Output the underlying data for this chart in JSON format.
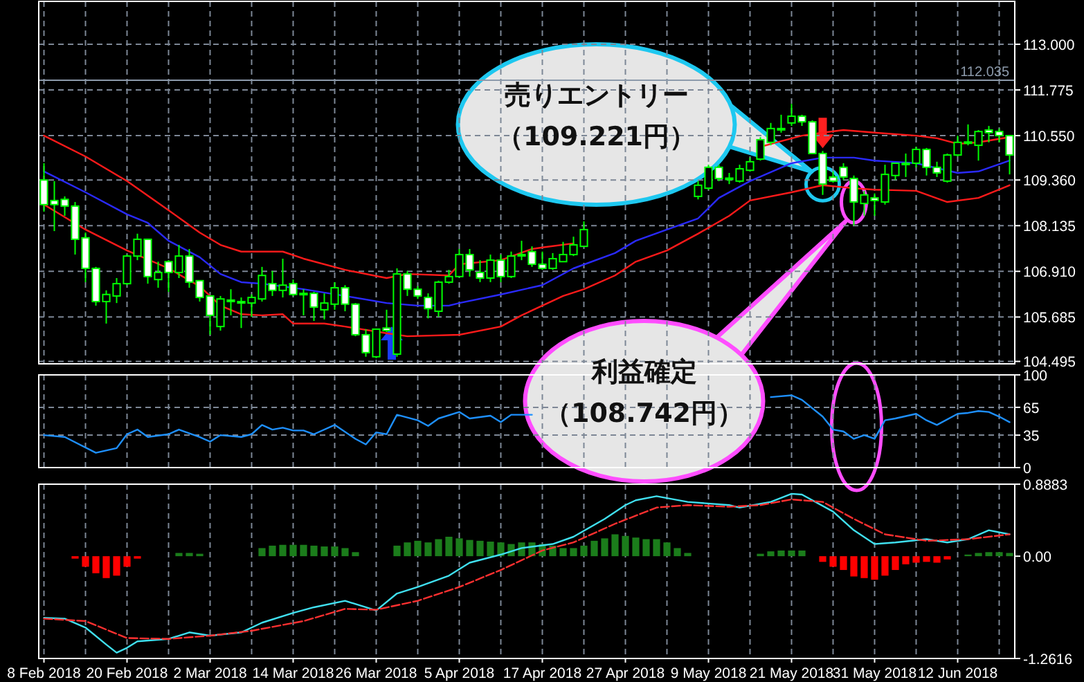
{
  "chart_data": [
    {
      "type": "candlestick",
      "color": "#00ff00",
      "tick_labels": "y",
      "grid": true,
      "categories": [
        null,
        null,
        null,
        null,
        null,
        null,
        null,
        null,
        null,
        null,
        null,
        null,
        null,
        null,
        null,
        null,
        null,
        null,
        null,
        null,
        null,
        null,
        null,
        null,
        null,
        null,
        null,
        null,
        null,
        null,
        null,
        null,
        null,
        null,
        null,
        null,
        null,
        null,
        null,
        null,
        null,
        null,
        null,
        null,
        null,
        null,
        null,
        null,
        null,
        null,
        null,
        null,
        null,
        null,
        null,
        null,
        null,
        null,
        null,
        null,
        null,
        null,
        null,
        null,
        null,
        null,
        null,
        null,
        null,
        null,
        null,
        null,
        null,
        null,
        null,
        null,
        null,
        null,
        null,
        null,
        null,
        null,
        null,
        null,
        null,
        null,
        null,
        null,
        null,
        null,
        null,
        null,
        null,
        null
      ],
      "ohlc": [
        [
          109.36,
          109.81,
          108.51,
          108.7
        ],
        [
          108.81,
          109.33,
          107.99,
          108.7
        ],
        [
          108.84,
          108.92,
          108.4,
          108.66
        ],
        [
          108.66,
          108.77,
          107.36,
          107.77
        ],
        [
          107.81,
          107.95,
          106.62,
          106.99
        ],
        [
          106.99,
          107.03,
          105.99,
          106.1
        ],
        [
          106.1,
          106.4,
          105.51,
          106.29
        ],
        [
          106.25,
          106.73,
          106.06,
          106.58
        ],
        [
          106.58,
          107.36,
          106.54,
          107.32
        ],
        [
          107.32,
          107.92,
          107.21,
          107.77
        ],
        [
          107.77,
          107.77,
          106.58,
          106.77
        ],
        [
          106.69,
          107.17,
          106.47,
          106.88
        ],
        [
          107.17,
          107.21,
          106.36,
          106.88
        ],
        [
          106.88,
          107.62,
          106.73,
          107.32
        ],
        [
          107.32,
          107.51,
          106.47,
          106.62
        ],
        [
          106.66,
          106.66,
          106.1,
          106.21
        ],
        [
          106.25,
          106.25,
          105.21,
          105.73
        ],
        [
          105.43,
          106.25,
          105.32,
          106.17
        ],
        [
          106.14,
          106.43,
          105.73,
          106.1
        ],
        [
          106.1,
          106.21,
          105.39,
          106.06
        ],
        [
          106.06,
          106.29,
          105.69,
          106.21
        ],
        [
          106.17,
          107.03,
          106.1,
          106.8
        ],
        [
          106.58,
          106.92,
          106.25,
          106.4
        ],
        [
          106.4,
          107.25,
          106.21,
          106.54
        ],
        [
          106.58,
          106.69,
          106.25,
          106.29
        ],
        [
          106.32,
          106.43,
          105.73,
          106.31
        ],
        [
          106.32,
          106.36,
          105.58,
          105.95
        ],
        [
          105.88,
          106.32,
          105.62,
          106.06
        ],
        [
          106.03,
          106.62,
          105.88,
          106.47
        ],
        [
          106.47,
          106.54,
          105.84,
          106.03
        ],
        [
          106.03,
          106.06,
          105.17,
          105.21
        ],
        [
          105.21,
          105.36,
          104.62,
          104.73
        ],
        [
          104.62,
          105.36,
          104.58,
          105.36
        ],
        [
          105.39,
          105.88,
          105.28,
          105.32
        ],
        [
          104.69,
          106.99,
          104.62,
          106.84
        ],
        [
          106.84,
          106.92,
          106.25,
          106.43
        ],
        [
          106.43,
          106.51,
          106.17,
          106.25
        ],
        [
          106.21,
          106.32,
          105.65,
          105.91
        ],
        [
          105.84,
          106.66,
          105.69,
          106.62
        ],
        [
          106.62,
          106.95,
          106.58,
          106.77
        ],
        [
          106.77,
          107.51,
          106.77,
          107.36
        ],
        [
          107.36,
          107.51,
          106.77,
          106.95
        ],
        [
          106.88,
          107.21,
          106.62,
          106.73
        ],
        [
          106.73,
          107.36,
          106.62,
          107.21
        ],
        [
          107.21,
          107.36,
          106.62,
          106.77
        ],
        [
          106.77,
          107.44,
          106.73,
          107.32
        ],
        [
          107.36,
          107.73,
          107.21,
          107.36
        ],
        [
          107.44,
          107.58,
          107.03,
          107.1
        ],
        [
          107.1,
          107.44,
          106.95,
          106.99
        ],
        [
          106.99,
          107.4,
          106.95,
          107.25
        ],
        [
          107.17,
          107.7,
          107.17,
          107.36
        ],
        [
          107.36,
          107.84,
          107.32,
          107.62
        ],
        [
          107.58,
          108.25,
          107.58,
          108.03
        ],
        null,
        null,
        null,
        null,
        null,
        null,
        null,
        null,
        null,
        null,
        [
          108.92,
          109.33,
          108.84,
          109.22
        ],
        [
          109.14,
          109.77,
          109.1,
          109.7
        ],
        [
          109.7,
          109.77,
          109.33,
          109.4
        ],
        [
          109.4,
          109.55,
          109.25,
          109.41
        ],
        [
          109.33,
          109.77,
          109.29,
          109.66
        ],
        [
          109.62,
          109.96,
          109.59,
          109.85
        ],
        [
          109.92,
          110.51,
          109.88,
          110.44
        ],
        [
          110.37,
          110.89,
          110.29,
          110.74
        ],
        [
          110.74,
          111.11,
          110.63,
          110.73
        ],
        [
          110.89,
          111.4,
          110.81,
          111.07
        ],
        [
          111.07,
          111.11,
          110.81,
          110.92
        ],
        [
          110.92,
          110.96,
          110.07,
          110.07
        ],
        [
          110.07,
          110.14,
          108.96,
          109.25
        ],
        [
          109.44,
          109.59,
          109.29,
          109.33
        ],
        [
          109.7,
          109.81,
          109.36,
          109.44
        ],
        [
          109.4,
          109.48,
          108.14,
          108.77
        ],
        [
          108.73,
          109.07,
          108.4,
          108.96
        ],
        [
          108.88,
          109.0,
          108.4,
          108.81
        ],
        [
          108.77,
          109.77,
          108.7,
          109.51
        ],
        [
          109.48,
          109.81,
          109.36,
          109.81
        ],
        [
          109.81,
          110.07,
          109.44,
          109.8
        ],
        [
          109.81,
          110.25,
          109.7,
          110.18
        ],
        [
          110.18,
          110.22,
          109.48,
          109.7
        ],
        [
          109.7,
          109.85,
          109.44,
          109.55
        ],
        [
          109.33,
          110.07,
          109.29,
          110.03
        ],
        [
          110.03,
          110.55,
          109.99,
          110.37
        ],
        [
          110.37,
          110.85,
          110.29,
          110.38
        ],
        [
          110.29,
          110.7,
          109.88,
          110.66
        ],
        [
          110.7,
          110.81,
          110.37,
          110.63
        ],
        [
          110.66,
          110.74,
          110.37,
          110.55
        ],
        [
          110.55,
          110.55,
          109.51,
          110.03
        ]
      ],
      "series": [
        {
          "type": "line",
          "color": "#ff1a1a",
          "values": [
            110.55,
            null,
            null,
            null,
            109.99,
            null,
            null,
            null,
            109.33,
            null,
            null,
            null,
            108.55,
            null,
            null,
            107.95,
            null,
            107.62,
            null,
            107.44,
            null,
            null,
            null,
            107.44,
            null,
            107.25,
            null,
            null,
            null,
            106.95,
            null,
            null,
            null,
            106.73,
            null,
            106.84,
            null,
            null,
            null,
            106.8,
            107.1,
            null,
            null,
            null,
            107.21,
            null,
            null,
            107.51,
            107.55,
            null,
            null,
            107.66,
            null,
            null,
            null,
            null,
            null,
            null,
            null,
            null,
            null,
            null,
            null,
            null,
            null,
            null,
            null,
            null,
            null,
            110.25,
            null,
            110.4,
            null,
            110.55,
            null,
            110.63,
            null,
            110.7,
            null,
            null,
            110.63,
            null,
            null,
            null,
            110.55,
            null,
            110.48,
            null,
            110.33,
            null,
            110.37,
            null,
            null,
            110.51
          ]
        },
        {
          "type": "line",
          "color": "#2a2aff",
          "values": [
            109.59,
            null,
            null,
            null,
            109.03,
            null,
            null,
            null,
            108.44,
            null,
            108.21,
            null,
            107.73,
            null,
            null,
            107.29,
            null,
            106.84,
            null,
            106.62,
            null,
            106.58,
            null,
            null,
            null,
            106.43,
            null,
            null,
            null,
            106.25,
            null,
            null,
            null,
            106.06,
            null,
            null,
            105.99,
            null,
            null,
            105.99,
            106.06,
            null,
            null,
            null,
            106.29,
            null,
            null,
            null,
            106.54,
            null,
            null,
            106.99,
            null,
            null,
            null,
            107.4,
            null,
            107.73,
            null,
            null,
            108.03,
            null,
            null,
            108.33,
            null,
            108.88,
            null,
            null,
            109.33,
            null,
            null,
            null,
            109.81,
            null,
            null,
            109.96,
            null,
            null,
            109.96,
            null,
            109.88,
            null,
            null,
            null,
            109.81,
            null,
            null,
            null,
            109.55,
            null,
            109.59,
            null,
            null,
            109.88
          ]
        },
        {
          "type": "line",
          "color": "#ff1a1a",
          "values": [
            108.7,
            null,
            null,
            null,
            108.03,
            null,
            null,
            null,
            107.47,
            null,
            null,
            null,
            106.99,
            null,
            null,
            106.51,
            null,
            105.99,
            null,
            105.76,
            null,
            105.73,
            null,
            105.76,
            105.51,
            null,
            null,
            105.51,
            null,
            105.43,
            null,
            null,
            null,
            105.25,
            null,
            105.17,
            null,
            null,
            null,
            null,
            105.21,
            null,
            null,
            null,
            105.43,
            null,
            105.73,
            null,
            null,
            null,
            106.25,
            null,
            106.43,
            null,
            null,
            106.8,
            null,
            107.17,
            null,
            null,
            107.47,
            null,
            null,
            107.92,
            null,
            null,
            108.4,
            null,
            108.81,
            null,
            null,
            null,
            109.03,
            null,
            null,
            109.22,
            null,
            null,
            109.14,
            null,
            109.1,
            null,
            null,
            null,
            109.07,
            null,
            null,
            108.77,
            null,
            null,
            108.88,
            null,
            null,
            109.22
          ]
        }
      ],
      "ylim": [
        104.43,
        114.15
      ],
      "yticks": [
        {
          "value": 113,
          "label": "113.000"
        },
        {
          "value": 111.775,
          "label": "111.775"
        },
        {
          "value": 110.55,
          "label": "110.550"
        },
        {
          "value": 109.36,
          "label": "109.360"
        },
        {
          "value": 108.135,
          "label": "108.135"
        },
        {
          "value": 106.91,
          "label": "106.910"
        },
        {
          "value": 105.685,
          "label": "105.685"
        },
        {
          "value": 104.495,
          "label": "104.495"
        }
      ],
      "ref_lines": [
        {
          "axis": "y",
          "value": 112.035,
          "label": "112.035",
          "color": "#8c9aab"
        }
      ],
      "annotations": [
        "売りエントリー",
        "（109.221円）",
        "利益確定",
        "（108.742円）"
      ]
    },
    {
      "type": "line",
      "tick_labels": "y",
      "grid": true,
      "categories": [
        null,
        null,
        null,
        null,
        null,
        null,
        null,
        null,
        null,
        null,
        null,
        null,
        null,
        null,
        null,
        null,
        null,
        null,
        null,
        null,
        null,
        null,
        null,
        null,
        null,
        null,
        null,
        null,
        null,
        null,
        null,
        null,
        null,
        null,
        null,
        null,
        null,
        null,
        null,
        null,
        null,
        null,
        null,
        null,
        null,
        null,
        null,
        null,
        null,
        null,
        null,
        null,
        null,
        null,
        null,
        null,
        null,
        null,
        null,
        null,
        null,
        null,
        null,
        null,
        null,
        null,
        null,
        null,
        null,
        null,
        null,
        null,
        null,
        null,
        null,
        null,
        null,
        null,
        null,
        null,
        null,
        null,
        null,
        null,
        null,
        null,
        null,
        null,
        null,
        null,
        null,
        null,
        null,
        null
      ],
      "series": [
        {
          "color": "#1e90ff",
          "values": [
            35,
            null,
            33,
            null,
            null,
            16,
            null,
            21,
            36,
            41,
            33,
            null,
            36,
            41,
            null,
            33,
            28,
            35,
            null,
            33,
            36,
            46,
            41,
            43,
            40,
            40,
            36,
            null,
            46,
            null,
            31,
            25,
            38,
            36,
            57,
            null,
            51,
            45,
            53,
            null,
            60,
            53,
            null,
            56,
            49,
            57,
            null,
            57,
            null,
            null,
            null,
            null,
            null,
            null,
            null,
            null,
            null,
            null,
            null,
            null,
            null,
            null,
            null,
            null,
            null,
            null,
            null,
            null,
            null,
            null,
            76,
            null,
            78,
            73,
            null,
            55,
            41,
            39,
            31,
            35,
            31,
            51,
            53,
            null,
            58,
            51,
            46,
            null,
            58,
            59,
            61,
            60,
            55,
            49
          ]
        }
      ],
      "ylim": [
        0,
        100
      ],
      "yticks": [
        100,
        65,
        35,
        0
      ]
    },
    {
      "type": "bar",
      "grid": "x",
      "categories": [
        "8 Feb 2018",
        null,
        null,
        null,
        null,
        null,
        null,
        null,
        "20 Feb 2018",
        null,
        null,
        null,
        null,
        null,
        null,
        null,
        "2 Mar 2018",
        null,
        null,
        null,
        null,
        null,
        null,
        null,
        "14 Mar 2018",
        null,
        null,
        null,
        null,
        null,
        null,
        null,
        "26 Mar 2018",
        null,
        null,
        null,
        null,
        null,
        null,
        null,
        "5 Apr 2018",
        null,
        null,
        null,
        null,
        null,
        null,
        null,
        "17 Apr 2018",
        null,
        null,
        null,
        null,
        null,
        null,
        null,
        "27 Apr 2018",
        null,
        null,
        null,
        null,
        null,
        null,
        null,
        "9 May 2018",
        null,
        null,
        null,
        null,
        null,
        null,
        null,
        "21 May 2018",
        null,
        null,
        null,
        null,
        null,
        null,
        null,
        "31 May 2018",
        null,
        null,
        null,
        null,
        null,
        null,
        null,
        "12 Jun 2018",
        null,
        null,
        null,
        null,
        null
      ],
      "series": [
        {
          "type": "bar",
          "color": "#1b7d1b",
          "values": [
            null,
            null,
            null,
            null,
            null,
            null,
            null,
            null,
            null,
            null,
            null,
            null,
            null,
            0.04,
            0.04,
            0.03,
            null,
            null,
            null,
            null,
            null,
            0.1,
            0.13,
            0.14,
            0.14,
            0.14,
            0.13,
            0.12,
            0.12,
            0.1,
            0.05,
            null,
            null,
            null,
            0.13,
            0.17,
            0.19,
            0.17,
            0.21,
            0.24,
            0.22,
            0.2,
            0.19,
            0.18,
            0.17,
            0.15,
            0.17,
            0.17,
            0.15,
            0.13,
            0.1,
            0.1,
            0.13,
            0.19,
            0.22,
            0.27,
            0.25,
            0.23,
            0.21,
            0.21,
            0.17,
            0.1,
            0.04,
            null,
            null,
            null,
            null,
            null,
            null,
            0.03,
            0.06,
            0.07,
            0.07,
            0.07,
            null,
            null,
            null,
            null,
            null,
            null,
            null,
            null,
            null,
            null,
            null,
            null,
            null,
            null,
            null,
            0.02,
            0.04,
            0.05,
            0.05,
            0.04
          ]
        },
        {
          "type": "bar",
          "color": "#ff0000",
          "values": [
            null,
            null,
            null,
            -0.03,
            -0.13,
            -0.21,
            -0.27,
            -0.24,
            -0.13,
            -0.03,
            null,
            null,
            null,
            null,
            null,
            null,
            null,
            null,
            null,
            null,
            null,
            null,
            null,
            null,
            null,
            null,
            null,
            null,
            null,
            null,
            null,
            null,
            null,
            null,
            null,
            null,
            null,
            null,
            null,
            null,
            null,
            null,
            null,
            null,
            null,
            null,
            null,
            null,
            null,
            null,
            null,
            null,
            null,
            null,
            null,
            null,
            null,
            null,
            null,
            null,
            null,
            null,
            null,
            null,
            null,
            null,
            null,
            null,
            null,
            null,
            null,
            null,
            null,
            null,
            null,
            -0.07,
            -0.13,
            -0.17,
            -0.25,
            -0.27,
            -0.29,
            -0.24,
            -0.17,
            -0.1,
            -0.08,
            -0.07,
            -0.08,
            -0.04,
            null,
            null,
            null,
            null,
            null,
            null
          ]
        },
        {
          "type": "line",
          "color": "#40e0f0",
          "line_style": "solid",
          "values": [
            -0.76,
            null,
            -0.77,
            null,
            -0.88,
            null,
            -1.09,
            -1.19,
            -1.13,
            -1.05,
            null,
            null,
            -1.02,
            null,
            -0.94,
            null,
            -0.98,
            null,
            null,
            -0.94,
            null,
            -0.82,
            null,
            null,
            -0.7,
            null,
            -0.63,
            null,
            null,
            -0.55,
            null,
            -0.63,
            -0.67,
            null,
            -0.46,
            null,
            -0.38,
            null,
            null,
            -0.24,
            null,
            -0.08,
            null,
            null,
            0.02,
            null,
            0.1,
            null,
            null,
            0.15,
            null,
            0.24,
            null,
            null,
            0.46,
            null,
            0.63,
            0.69,
            null,
            0.74,
            null,
            null,
            0.67,
            null,
            null,
            null,
            0.63,
            0.6,
            null,
            null,
            0.67,
            null,
            0.77,
            0.76,
            null,
            null,
            0.55,
            null,
            0.32,
            null,
            0.15,
            null,
            0.17,
            null,
            null,
            0.21,
            null,
            0.17,
            null,
            0.21,
            null,
            0.32,
            null,
            0.27
          ]
        },
        {
          "type": "line",
          "color": "#ff3030",
          "line_style": "dashed",
          "values": [
            -0.77,
            null,
            null,
            null,
            -0.8,
            null,
            null,
            null,
            -1.01,
            null,
            null,
            null,
            -1.02,
            null,
            null,
            null,
            -0.98,
            null,
            null,
            null,
            -0.92,
            null,
            null,
            null,
            null,
            -0.8,
            null,
            null,
            null,
            -0.65,
            null,
            null,
            -0.66,
            null,
            null,
            null,
            -0.55,
            null,
            null,
            null,
            -0.38,
            null,
            null,
            null,
            -0.17,
            null,
            null,
            null,
            0.07,
            null,
            null,
            0.17,
            null,
            null,
            null,
            0.4,
            null,
            null,
            null,
            0.6,
            null,
            null,
            0.63,
            null,
            null,
            null,
            0.61,
            null,
            null,
            0.63,
            null,
            null,
            0.7,
            null,
            null,
            0.67,
            null,
            null,
            0.46,
            null,
            null,
            0.27,
            null,
            null,
            null,
            0.19,
            null,
            null,
            null,
            0.21,
            null,
            null,
            null,
            0.27
          ]
        }
      ],
      "ylim": [
        -1.2616,
        0.8883
      ],
      "yticks": [
        {
          "value": 0.8883,
          "label": "0.8883"
        },
        {
          "value": 0,
          "label": "0.00"
        },
        {
          "value": -1.2616,
          "label": "-1.2616"
        }
      ]
    }
  ]
}
